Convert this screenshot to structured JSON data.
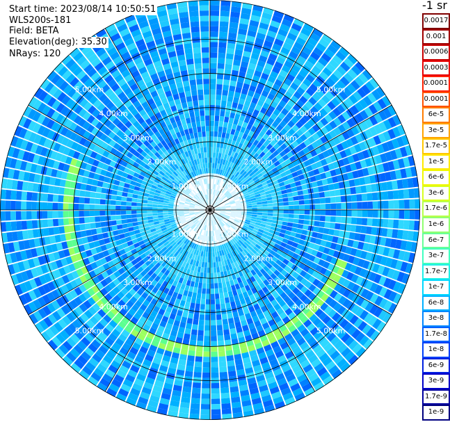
{
  "header": {
    "start_time": "Start time: 2023/08/14 10:50:51",
    "device": "WLS200s-181",
    "field": "Field: BETA",
    "elevation": "Elevation(deg): 35.30",
    "nrays": "NRays: 120"
  },
  "chart_data": {
    "type": "heatmap",
    "projection": "polar (PPI scan)",
    "field": "BETA",
    "elevation_deg": 35.3,
    "n_rays": 120,
    "range_rings_km": [
      1.0,
      2.0,
      3.0,
      4.0,
      5.0
    ],
    "range_ring_labels": [
      "1.00km",
      "2.00km",
      "3.00km",
      "4.00km",
      "5.00km"
    ],
    "max_range_km": 6.15,
    "gridlines": true,
    "feature_ring_km": 4.1,
    "colorbar": {
      "unit_label": "-1 sr",
      "tick_labels": [
        "0.0017",
        "0.001",
        "0.0006",
        "0.0003",
        "0.00017",
        "0.0001",
        "6e-5",
        "3e-5",
        "1.7e-5",
        "1e-5",
        "6e-6",
        "3e-6",
        "1.7e-6",
        "1e-6",
        "6e-7",
        "3e-7",
        "1.7e-7",
        "1e-7",
        "6e-8",
        "3e-8",
        "1.7e-8",
        "1e-8",
        "6e-9",
        "3e-9",
        "1.7e-9",
        "1e-9"
      ],
      "colors": [
        "#800000",
        "#a00000",
        "#c80000",
        "#e80000",
        "#ff2000",
        "#ff5000",
        "#ff7c00",
        "#ffa400",
        "#ffc800",
        "#ffea00",
        "#f0f800",
        "#d8ff20",
        "#b8ff48",
        "#90ff70",
        "#68ff98",
        "#40ffc0",
        "#20f0e8",
        "#00d8ff",
        "#00b0ff",
        "#0088ff",
        "#0060ff",
        "#0040f8",
        "#0020e0",
        "#0000c8",
        "#0000a0",
        "#000080"
      ]
    }
  }
}
